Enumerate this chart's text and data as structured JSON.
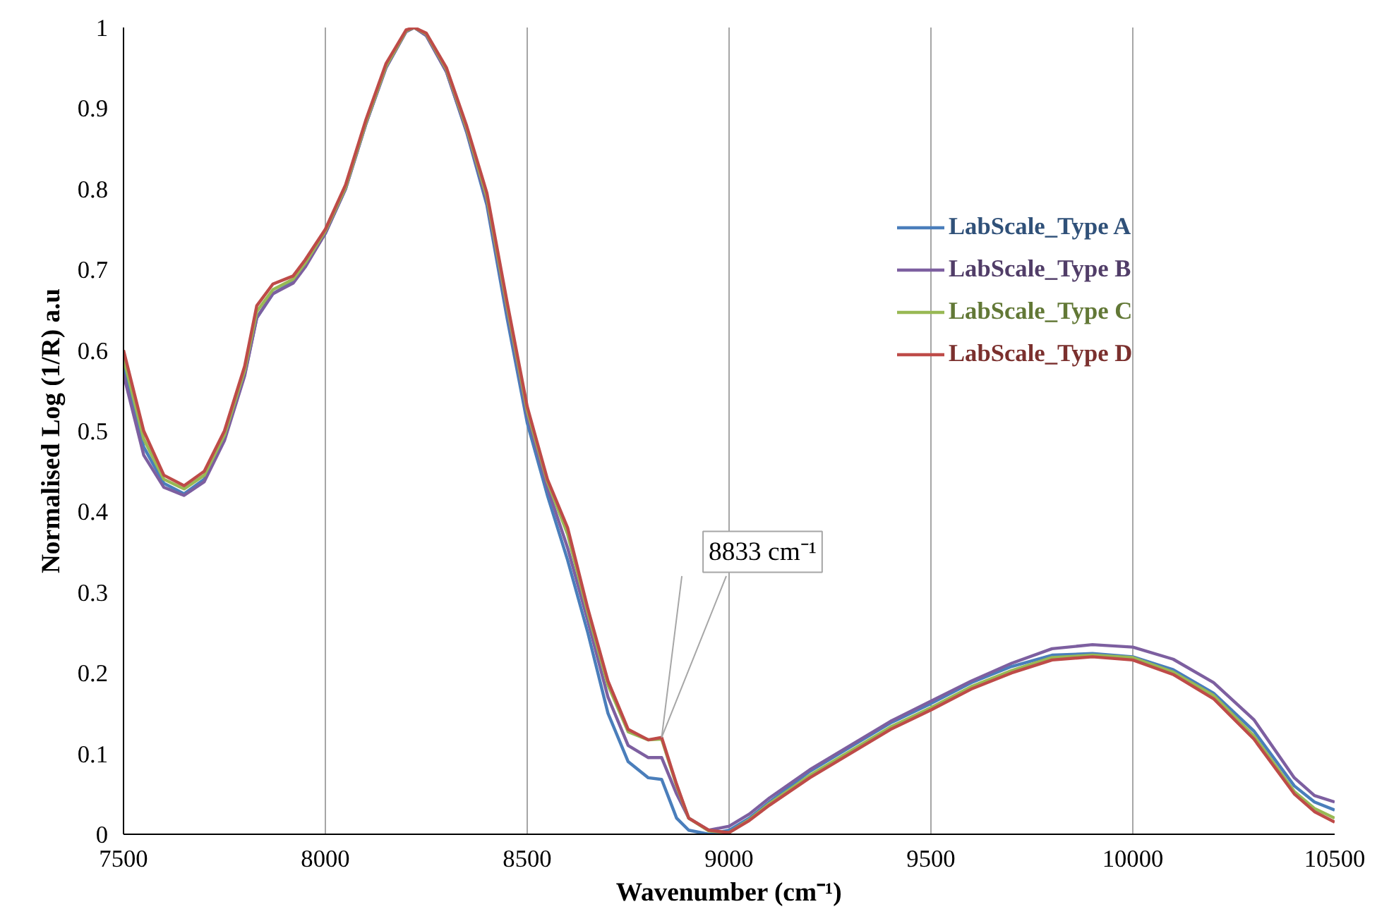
{
  "chart_data": {
    "type": "line",
    "xlabel": "Wavenumber (cm⁻¹)",
    "ylabel": "Normalised Log (1/R) a.u",
    "x": [
      7500,
      7550,
      7600,
      7650,
      7700,
      7750,
      7800,
      7830,
      7870,
      7920,
      7950,
      8000,
      8050,
      8100,
      8150,
      8200,
      8220,
      8250,
      8300,
      8350,
      8400,
      8450,
      8500,
      8550,
      8600,
      8650,
      8700,
      8750,
      8800,
      8833,
      8870,
      8900,
      8950,
      9000,
      9050,
      9100,
      9200,
      9300,
      9400,
      9500,
      9600,
      9700,
      9800,
      9900,
      10000,
      10100,
      10200,
      10300,
      10400,
      10450,
      10500
    ],
    "series": [
      {
        "name": "LabScale_Type A",
        "color": "#4a7ebb",
        "values": [
          0.58,
          0.48,
          0.435,
          0.422,
          0.44,
          0.49,
          0.57,
          0.64,
          0.67,
          0.685,
          0.705,
          0.745,
          0.8,
          0.88,
          0.95,
          0.995,
          1.0,
          0.99,
          0.945,
          0.87,
          0.78,
          0.64,
          0.51,
          0.42,
          0.34,
          0.25,
          0.15,
          0.09,
          0.07,
          0.068,
          0.02,
          0.005,
          0.0,
          0.005,
          0.02,
          0.04,
          0.078,
          0.108,
          0.138,
          0.162,
          0.188,
          0.208,
          0.222,
          0.224,
          0.22,
          0.204,
          0.175,
          0.128,
          0.06,
          0.04,
          0.03
        ]
      },
      {
        "name": "LabScale_Type B",
        "color": "#7d5fa0",
        "values": [
          0.57,
          0.47,
          0.43,
          0.42,
          0.437,
          0.488,
          0.568,
          0.64,
          0.67,
          0.683,
          0.703,
          0.745,
          0.8,
          0.88,
          0.95,
          0.995,
          1.0,
          0.99,
          0.945,
          0.872,
          0.785,
          0.65,
          0.52,
          0.43,
          0.355,
          0.265,
          0.17,
          0.11,
          0.095,
          0.095,
          0.05,
          0.02,
          0.005,
          0.01,
          0.025,
          0.045,
          0.08,
          0.11,
          0.14,
          0.165,
          0.19,
          0.212,
          0.23,
          0.235,
          0.232,
          0.217,
          0.188,
          0.142,
          0.07,
          0.048,
          0.04
        ]
      },
      {
        "name": "LabScale_Type C",
        "color": "#98b954",
        "values": [
          0.59,
          0.49,
          0.44,
          0.428,
          0.445,
          0.495,
          0.575,
          0.648,
          0.675,
          0.688,
          0.708,
          0.748,
          0.802,
          0.882,
          0.952,
          0.996,
          1.0,
          0.992,
          0.948,
          0.875,
          0.79,
          0.655,
          0.525,
          0.437,
          0.372,
          0.275,
          0.185,
          0.127,
          0.117,
          0.118,
          0.06,
          0.02,
          0.004,
          0.002,
          0.018,
          0.038,
          0.073,
          0.103,
          0.133,
          0.157,
          0.183,
          0.203,
          0.219,
          0.222,
          0.219,
          0.201,
          0.172,
          0.122,
          0.053,
          0.032,
          0.02
        ]
      },
      {
        "name": "LabScale_Type D",
        "color": "#be4b48",
        "values": [
          0.6,
          0.5,
          0.445,
          0.432,
          0.45,
          0.5,
          0.58,
          0.655,
          0.682,
          0.692,
          0.712,
          0.75,
          0.805,
          0.885,
          0.955,
          0.997,
          1.0,
          0.993,
          0.95,
          0.878,
          0.795,
          0.66,
          0.53,
          0.44,
          0.38,
          0.28,
          0.19,
          0.13,
          0.117,
          0.12,
          0.062,
          0.02,
          0.005,
          0.002,
          0.017,
          0.036,
          0.07,
          0.1,
          0.13,
          0.154,
          0.18,
          0.2,
          0.216,
          0.22,
          0.216,
          0.198,
          0.168,
          0.118,
          0.05,
          0.028,
          0.015
        ]
      }
    ],
    "xlim": [
      7500,
      10500
    ],
    "ylim": [
      0,
      1
    ],
    "xticks": [
      7500,
      8000,
      8500,
      9000,
      9500,
      10000,
      10500
    ],
    "yticks": [
      0,
      0.1,
      0.2,
      0.3,
      0.4,
      0.5,
      0.6,
      0.7,
      0.8,
      0.9,
      1
    ],
    "grid": "x",
    "legend": "right",
    "marker": "none",
    "line_style": "solid",
    "annotations": [
      {
        "text": "8833 cm⁻¹",
        "x": 8833,
        "y": 0.12
      }
    ]
  }
}
